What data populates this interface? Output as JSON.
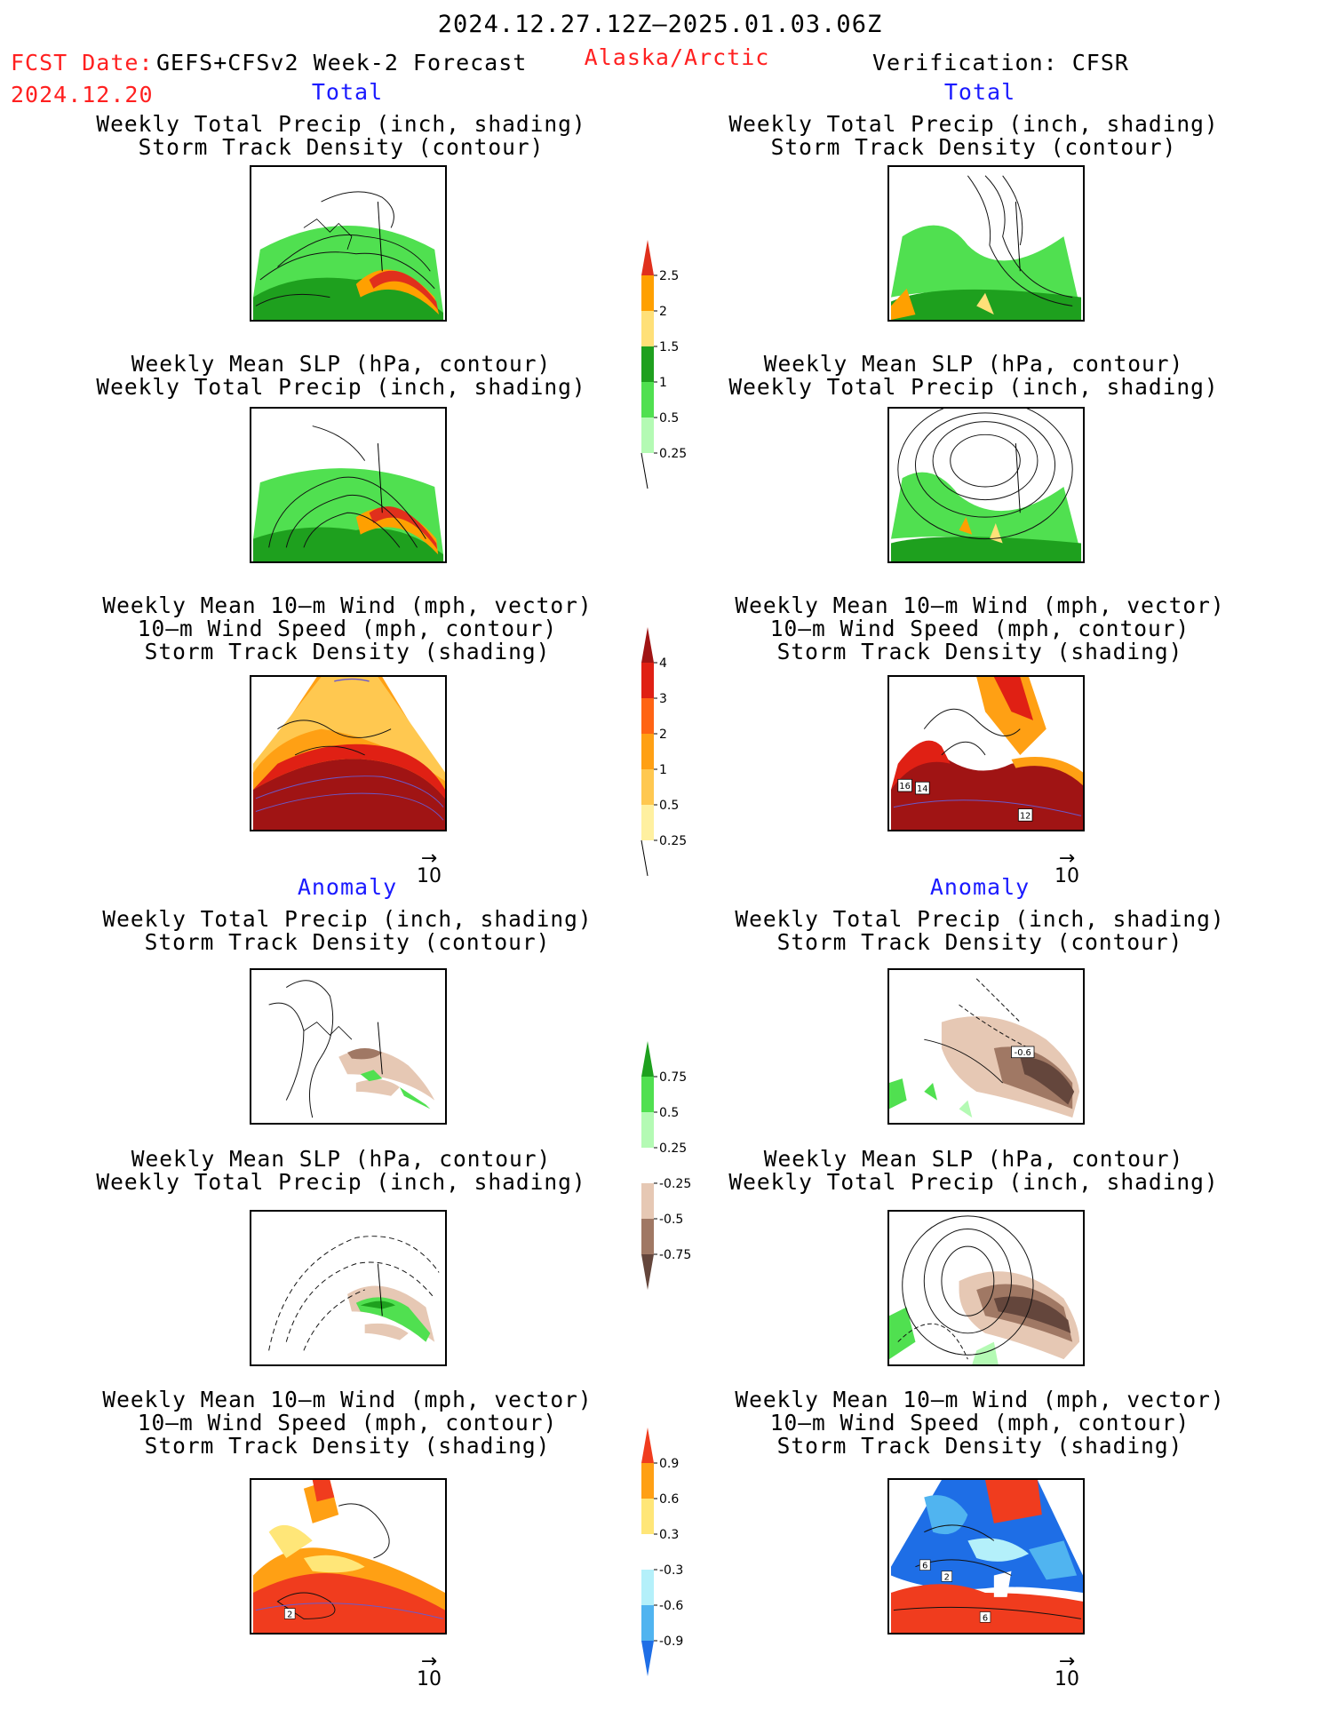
{
  "header": {
    "period": "2024.12.27.12Z–2025.01.03.06Z",
    "fcst_label": "FCST Date:",
    "fcst_model": "GEFS+CFSv2 Week-2 Forecast",
    "fcst_date": "2024.12.20",
    "region": "Alaska/Arctic",
    "verification": "Verification: CFSR"
  },
  "sections": {
    "total_left": "Total",
    "total_right": "Total",
    "anomaly_left": "Anomaly",
    "anomaly_right": "Anomaly"
  },
  "titles": {
    "precip_storm": [
      "Weekly Total Precip (inch, shading)",
      "Storm Track Density (contour)"
    ],
    "slp_precip": [
      "Weekly Mean SLP (hPa, contour)",
      "Weekly Total Precip (inch, shading)"
    ],
    "wind_storm": [
      "Weekly Mean 10–m Wind (mph, vector)",
      "10–m Wind Speed (mph, contour)",
      "Storm Track Density (shading)"
    ]
  },
  "vector_reference": {
    "value": "10",
    "arrow": "→"
  },
  "contour_labels": {
    "obs_wind_total": [
      "16",
      "14",
      "12"
    ],
    "obs_precip_anom": "-0.6",
    "fcst_wind_anom": "2",
    "obs_wind_anom": [
      "6",
      "2",
      "6"
    ]
  },
  "colorbars": {
    "precip_total": {
      "labels": [
        "2.5",
        "2",
        "1.5",
        "1",
        "0.5",
        "0.25"
      ],
      "colors": [
        "#e0301c",
        "#ffa000",
        "#ffe078",
        "#1ea01e",
        "#50e050",
        "#b4fab4",
        "#ffffff"
      ]
    },
    "storm_total": {
      "labels": [
        "4",
        "3",
        "2",
        "1",
        "0.5",
        "0.25"
      ],
      "colors": [
        "#a01414",
        "#e02014",
        "#ff6414",
        "#ffa014",
        "#ffc850",
        "#fff0a0",
        "#ffffff"
      ]
    },
    "precip_anom": {
      "labels": [
        "0.75",
        "0.5",
        "0.25",
        "-0.25",
        "-0.5",
        "-0.75"
      ],
      "colors": [
        "#1ea01e",
        "#50e050",
        "#b4fab4",
        "#ffffff",
        "#e6c8b4",
        "#a07864",
        "#64463c"
      ]
    },
    "storm_anom": {
      "labels": [
        "0.9",
        "0.6",
        "0.3",
        "-0.3",
        "-0.6",
        "-0.9"
      ],
      "colors": [
        "#f03c1e",
        "#ffa014",
        "#ffe678",
        "#ffffff",
        "#b4f0fa",
        "#50b4f0",
        "#1e6ee6"
      ]
    }
  }
}
